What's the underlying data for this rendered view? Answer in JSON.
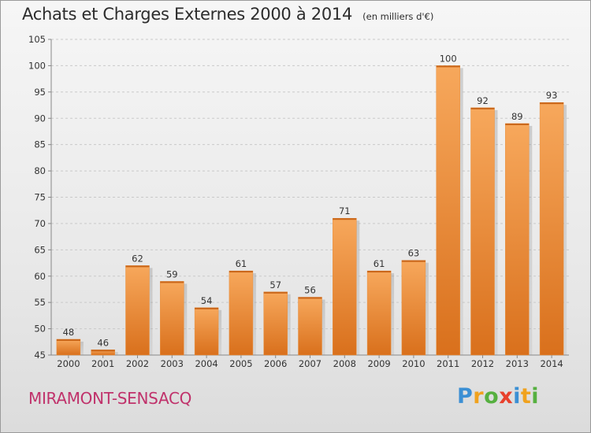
{
  "chart_data": {
    "type": "bar",
    "title": "Achats et Charges Externes 2000 à 2014",
    "subtitle": "(en milliers d'€)",
    "categories": [
      "2000",
      "2001",
      "2002",
      "2003",
      "2004",
      "2005",
      "2006",
      "2007",
      "2008",
      "2009",
      "2010",
      "2011",
      "2012",
      "2013",
      "2014"
    ],
    "values": [
      48,
      46,
      62,
      59,
      54,
      61,
      57,
      56,
      71,
      61,
      63,
      100,
      92,
      89,
      93
    ],
    "ylim": [
      45,
      105
    ],
    "yticks": [
      45,
      50,
      55,
      60,
      65,
      70,
      75,
      80,
      85,
      90,
      95,
      100,
      105
    ],
    "grid": true,
    "bar_color": "#f0923a"
  },
  "place_name": "MIRAMONT-SENSACQ",
  "brand": {
    "letters": [
      "P",
      "r",
      "o",
      "x",
      "i",
      "t",
      "i"
    ],
    "colors": [
      "#3b8fd4",
      "#f0a21e",
      "#56b040",
      "#e8402c",
      "#3b8fd4",
      "#f0a21e",
      "#56b040"
    ]
  }
}
